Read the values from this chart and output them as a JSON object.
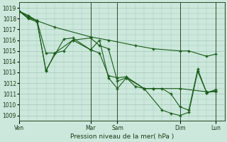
{
  "bg_color": "#cce8dc",
  "grid_color": "#a0c8b4",
  "line_color": "#1a5c1a",
  "marker_color": "#1a5c1a",
  "xlabel": "Pression niveau de la mer( hPa )",
  "ylim": [
    1008.5,
    1019.5
  ],
  "yticks": [
    1009,
    1010,
    1011,
    1012,
    1013,
    1014,
    1015,
    1016,
    1017,
    1018,
    1019
  ],
  "xtick_labels": [
    "Ven",
    "Mar",
    "Sam",
    "Dim",
    "Lun"
  ],
  "xtick_positions": [
    0,
    8,
    11,
    18,
    22
  ],
  "xmax": 23,
  "vlines_x": [
    0,
    8,
    11,
    18,
    22
  ],
  "vline_color": "#2a4a2a",
  "lines": [
    {
      "x": [
        0,
        1,
        2,
        4,
        8,
        10,
        13,
        15,
        18,
        19,
        21,
        22
      ],
      "y": [
        1018.7,
        1018.3,
        1017.8,
        1017.2,
        1016.3,
        1016.0,
        1015.5,
        1015.2,
        1015.0,
        1015.0,
        1014.5,
        1014.7
      ]
    },
    {
      "x": [
        0,
        1,
        2,
        3,
        4,
        6,
        8,
        9,
        10,
        11,
        12,
        13,
        14,
        15,
        18,
        21,
        22
      ],
      "y": [
        1018.7,
        1018.2,
        1017.8,
        1014.8,
        1014.8,
        1016.0,
        1016.2,
        1015.5,
        1015.2,
        1012.2,
        1012.5,
        1011.7,
        1011.5,
        1011.5,
        1011.5,
        1011.2,
        1011.2
      ]
    },
    {
      "x": [
        0,
        1,
        2,
        3,
        5,
        6,
        8,
        9,
        10,
        11,
        12,
        14,
        15,
        16,
        17,
        18,
        19,
        20,
        21,
        22
      ],
      "y": [
        1018.7,
        1018.0,
        1017.7,
        1013.2,
        1016.1,
        1016.2,
        1015.1,
        1014.8,
        1012.7,
        1012.5,
        1012.6,
        1011.5,
        1011.5,
        1011.5,
        1011.0,
        1009.8,
        1009.5,
        1013.3,
        1011.1,
        1011.4
      ]
    },
    {
      "x": [
        0,
        1,
        2,
        3,
        4,
        5,
        6,
        8,
        9,
        10,
        11,
        12,
        14,
        16,
        17,
        18,
        19,
        20,
        21,
        22
      ],
      "y": [
        1018.7,
        1018.1,
        1017.8,
        1013.1,
        1014.8,
        1015.0,
        1016.0,
        1015.1,
        1016.0,
        1012.5,
        1011.5,
        1012.5,
        1011.5,
        1009.5,
        1009.2,
        1009.0,
        1009.3,
        1013.1,
        1011.1,
        1011.3
      ]
    }
  ]
}
